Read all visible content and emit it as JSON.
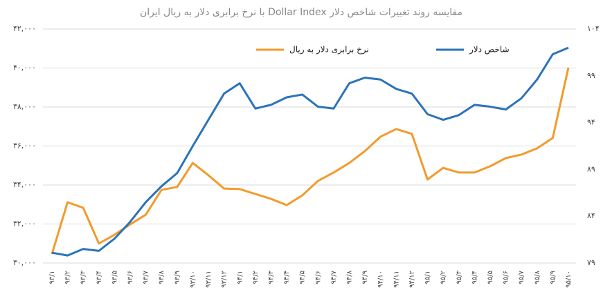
{
  "chart_data": {
    "type": "line",
    "title": "مقایسه روند تغییرات شاخص دلار Dollar Index با نرخ برابری دلار به ریال ایران",
    "categories": [
      "۹۳/۱",
      "۹۳/۲",
      "۹۳/۳",
      "۹۳/۴",
      "۹۳/۵",
      "۹۳/۶",
      "۹۳/۷",
      "۹۳/۸",
      "۹۳/۹",
      "۹۳/۱۰",
      "۹۳/۱۱",
      "۹۳/۱۲",
      "۹۴/۱",
      "۹۴/۲",
      "۹۴/۳",
      "۹۴/۴",
      "۹۴/۵",
      "۹۴/۶",
      "۹۴/۷",
      "۹۴/۸",
      "۹۴/۹",
      "۹۴/۱۰",
      "۹۴/۱۱",
      "۹۴/۱۲",
      "۹۵/۱",
      "۹۵/۲",
      "۹۵/۳",
      "۹۵/۴",
      "۹۵/۵",
      "۹۵/۶",
      "۹۵/۷",
      "۹۵/۸",
      "۹۵/۹",
      "۹۵/۱۰"
    ],
    "series": [
      {
        "name": "نرخ برابری دلار به ریال",
        "color": "#f39a2b",
        "values": [
          30460,
          33115,
          32830,
          31000,
          31450,
          31980,
          32480,
          33750,
          33900,
          35130,
          34500,
          33820,
          33790,
          33540,
          33290,
          32970,
          33470,
          34210,
          34640,
          35130,
          35740,
          36480,
          36870,
          36620,
          34280,
          34880,
          34640,
          34640,
          34960,
          35380,
          35560,
          35880,
          36410,
          40020
        ]
      },
      {
        "name": "شاخص دلار",
        "color": "#2a73b9",
        "axis": "y2",
        "values": [
          80.1,
          79.8,
          80.5,
          80.3,
          81.6,
          83.4,
          85.5,
          87.2,
          88.6,
          91.5,
          94.3,
          97.1,
          98.2,
          95.5,
          95.9,
          96.7,
          97.0,
          95.7,
          95.5,
          98.2,
          98.8,
          98.6,
          97.6,
          97.1,
          94.9,
          94.3,
          94.8,
          95.9,
          95.7,
          95.4,
          96.6,
          98.6,
          101.3,
          102.0
        ]
      }
    ],
    "ylim": [
      30000,
      42000
    ],
    "yticks": [
      {
        "value": 30000,
        "label": "۳۰,۰۰۰"
      },
      {
        "value": 32000,
        "label": "۳۲,۰۰۰"
      },
      {
        "value": 34000,
        "label": "۳۴,۰۰۰"
      },
      {
        "value": 36000,
        "label": "۳۶,۰۰۰"
      },
      {
        "value": 38000,
        "label": "۳۸,۰۰۰"
      },
      {
        "value": 40000,
        "label": "۴۰,۰۰۰"
      },
      {
        "value": 42000,
        "label": "۴۲,۰۰۰"
      }
    ],
    "y2lim": [
      79,
      104
    ],
    "y2ticks": [
      {
        "value": 79,
        "label": "۷۹"
      },
      {
        "value": 84,
        "label": "۸۴"
      },
      {
        "value": 89,
        "label": "۸۹"
      },
      {
        "value": 94,
        "label": "۹۴"
      },
      {
        "value": 99,
        "label": "۹۹"
      },
      {
        "value": 104,
        "label": "۱۰۴"
      }
    ],
    "grid": true
  }
}
